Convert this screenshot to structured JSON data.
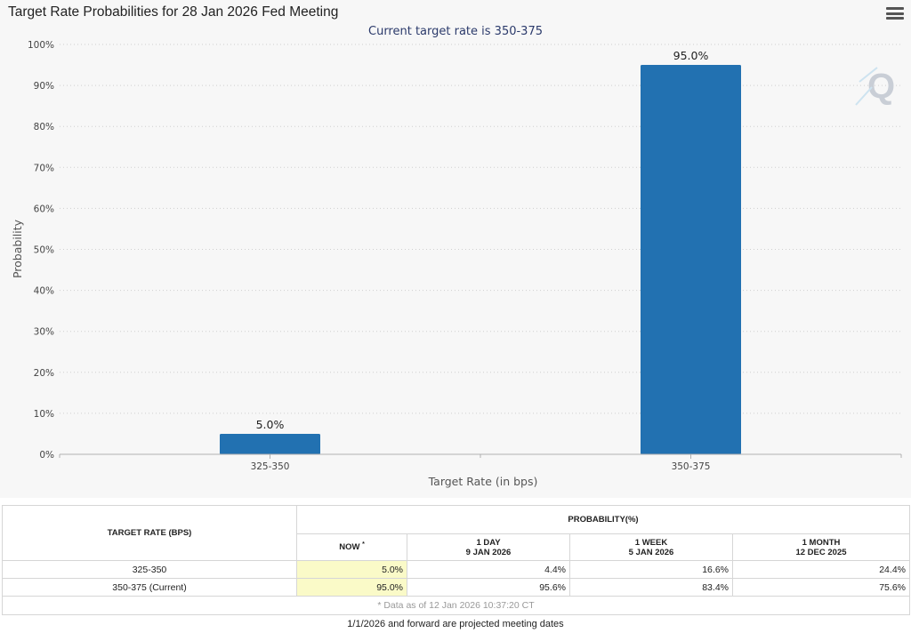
{
  "chart_data": {
    "type": "bar",
    "title": "Target Rate Probabilities for 28 Jan 2026 Fed Meeting",
    "subtitle": "Current target rate is 350-375",
    "xlabel": "Target Rate (in bps)",
    "ylabel": "Probability",
    "categories": [
      "325-350",
      "350-375"
    ],
    "values": [
      5.0,
      95.0
    ],
    "data_labels": [
      "5.0%",
      "95.0%"
    ],
    "ylim": [
      0,
      100
    ],
    "yticks": [
      "0%",
      "10%",
      "20%",
      "30%",
      "40%",
      "50%",
      "60%",
      "70%",
      "80%",
      "90%",
      "100%"
    ],
    "grid": true,
    "bar_color": "#2271b1"
  },
  "table": {
    "col_target": "TARGET RATE (BPS)",
    "col_probability": "PROBABILITY(%)",
    "sub_now": "NOW",
    "sub_now_mark": "*",
    "sub_1day": "1 DAY",
    "sub_1day_date": "9 JAN 2026",
    "sub_1week": "1 WEEK",
    "sub_1week_date": "5 JAN 2026",
    "sub_1month": "1 MONTH",
    "sub_1month_date": "12 DEC 2025",
    "rows": [
      {
        "rate": "325-350",
        "now": "5.0%",
        "day": "4.4%",
        "week": "16.6%",
        "month": "24.4%"
      },
      {
        "rate": "350-375 (Current)",
        "now": "95.0%",
        "day": "95.6%",
        "week": "83.4%",
        "month": "75.6%"
      }
    ],
    "footnote": "* Data as of 12 Jan 2026 10:37:20 CT"
  },
  "projected_note": "1/1/2026 and forward are projected meeting dates",
  "icons": {
    "menu": "hamburger-menu-icon",
    "watermark": "q-logo-watermark"
  }
}
